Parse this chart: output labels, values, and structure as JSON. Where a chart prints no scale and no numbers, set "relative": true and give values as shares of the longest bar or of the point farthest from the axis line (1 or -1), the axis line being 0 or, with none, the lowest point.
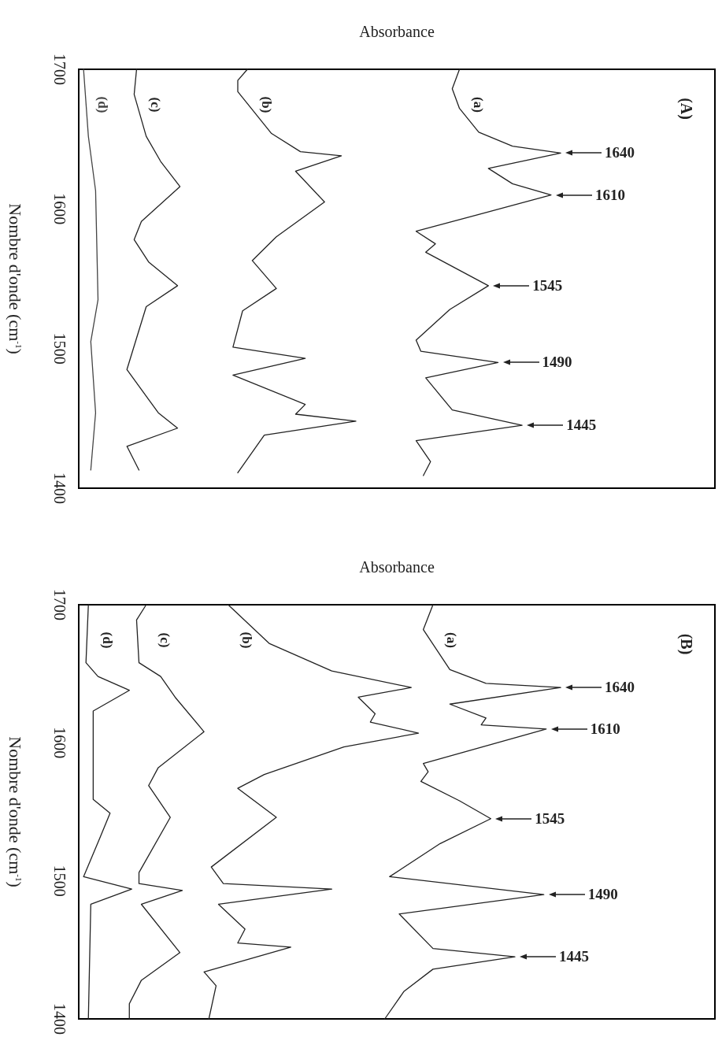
{
  "chart_data": [
    {
      "type": "line",
      "relative": true,
      "orientation": "horizontal",
      "xlabel": "Absorbance",
      "ylabel": "Nombre d'onde (cm$^{-1}$)",
      "ylim": [
        1400,
        1700
      ],
      "yticks": [
        1400,
        1500,
        1600,
        1700
      ],
      "legend": false,
      "grid": false,
      "line_style": "solid",
      "annotations": [
        "(A)",
        {
          "text": "1640",
          "x": 1.0,
          "y": 1640
        },
        {
          "text": "1610",
          "x": 0.98,
          "y": 1610
        },
        {
          "text": "1545",
          "x": 0.85,
          "y": 1545
        },
        {
          "text": "1490",
          "x": 0.87,
          "y": 1490
        },
        {
          "text": "1445",
          "x": 0.92,
          "y": 1445
        }
      ],
      "series": [
        {
          "name": "(a)",
          "color": "#222222",
          "x": [
            1700,
            1686,
            1672,
            1655,
            1645,
            1640,
            1629,
            1618,
            1610,
            1596,
            1584,
            1575,
            1569,
            1545,
            1528,
            1506,
            1498,
            1490,
            1479,
            1456,
            1445,
            1434,
            1419,
            1409
          ],
          "values": [
            0.79,
            0.775,
            0.79,
            0.83,
            0.9,
            1.0,
            0.85,
            0.9,
            0.98,
            0.83,
            0.7,
            0.74,
            0.72,
            0.85,
            0.77,
            0.7,
            0.71,
            0.87,
            0.72,
            0.775,
            0.92,
            0.7,
            0.73,
            0.715
          ]
        },
        {
          "name": "(b)",
          "color": "#222222",
          "x": [
            1700,
            1692,
            1684,
            1654,
            1641,
            1638,
            1627,
            1605,
            1580,
            1563,
            1543,
            1527,
            1501,
            1493,
            1481,
            1460,
            1453,
            1448,
            1438,
            1411
          ],
          "values": [
            0.35,
            0.33,
            0.33,
            0.4,
            0.46,
            0.545,
            0.45,
            0.51,
            0.41,
            0.36,
            0.41,
            0.34,
            0.32,
            0.47,
            0.32,
            0.47,
            0.45,
            0.575,
            0.385,
            0.33
          ]
        },
        {
          "name": "(c)",
          "color": "#222222",
          "x": [
            1700,
            1682,
            1652,
            1634,
            1616,
            1591,
            1578,
            1562,
            1545,
            1530,
            1485,
            1454,
            1443,
            1430,
            1413
          ],
          "values": [
            0.12,
            0.115,
            0.14,
            0.17,
            0.21,
            0.13,
            0.115,
            0.145,
            0.205,
            0.14,
            0.1,
            0.165,
            0.205,
            0.1,
            0.125
          ]
        },
        {
          "name": "(d)",
          "color": "#444444",
          "x": [
            1700,
            1652,
            1613,
            1535,
            1505,
            1454,
            1413
          ],
          "values": [
            0.01,
            0.02,
            0.035,
            0.04,
            0.025,
            0.035,
            0.025
          ]
        }
      ]
    },
    {
      "type": "line",
      "relative": true,
      "orientation": "horizontal",
      "xlabel": "Absorbance",
      "ylabel": "Nombre d'onde (cm$^{-1}$)",
      "ylim": [
        1400,
        1700
      ],
      "yticks": [
        1400,
        1500,
        1600,
        1700
      ],
      "legend": false,
      "grid": false,
      "line_style": "solid",
      "annotations": [
        "(B)",
        {
          "text": "1640",
          "x": 1.0,
          "y": 1640
        },
        {
          "text": "1610",
          "x": 0.97,
          "y": 1610
        },
        {
          "text": "1545",
          "x": 0.855,
          "y": 1545
        },
        {
          "text": "1490",
          "x": 0.965,
          "y": 1490
        },
        {
          "text": "1445",
          "x": 0.905,
          "y": 1445
        }
      ],
      "series": [
        {
          "name": "(a)",
          "color": "#222222",
          "x": [
            1700,
            1682,
            1653,
            1643,
            1640,
            1628,
            1618,
            1613,
            1610,
            1585,
            1579,
            1572,
            1558,
            1545,
            1527,
            1503,
            1490,
            1476,
            1451,
            1445,
            1436,
            1420,
            1400
          ],
          "values": [
            0.735,
            0.715,
            0.77,
            0.845,
            1.0,
            0.77,
            0.845,
            0.835,
            0.97,
            0.715,
            0.725,
            0.71,
            0.79,
            0.855,
            0.75,
            0.645,
            0.965,
            0.665,
            0.735,
            0.905,
            0.735,
            0.675,
            0.635
          ]
        },
        {
          "name": "(b)",
          "color": "#222222",
          "x": [
            1700,
            1672,
            1652,
            1640,
            1633,
            1621,
            1615,
            1607,
            1597,
            1577,
            1567,
            1546,
            1510,
            1498,
            1494,
            1483,
            1465,
            1455,
            1452,
            1434,
            1424,
            1400
          ],
          "values": [
            0.31,
            0.395,
            0.525,
            0.69,
            0.58,
            0.615,
            0.605,
            0.705,
            0.55,
            0.385,
            0.33,
            0.41,
            0.275,
            0.3,
            0.525,
            0.29,
            0.345,
            0.33,
            0.44,
            0.26,
            0.285,
            0.27
          ]
        },
        {
          "name": "(c)",
          "color": "#222222",
          "x": [
            1700,
            1689,
            1658,
            1648,
            1633,
            1608,
            1582,
            1569,
            1546,
            1506,
            1498,
            1493,
            1483,
            1448,
            1428,
            1411,
            1400
          ],
          "values": [
            0.14,
            0.12,
            0.125,
            0.17,
            0.2,
            0.26,
            0.165,
            0.145,
            0.19,
            0.125,
            0.125,
            0.215,
            0.13,
            0.21,
            0.13,
            0.105,
            0.105
          ]
        },
        {
          "name": "(d)",
          "color": "#222222",
          "x": [
            1700,
            1658,
            1648,
            1638,
            1623,
            1559,
            1549,
            1532,
            1503,
            1494,
            1483,
            1400
          ],
          "values": [
            0.02,
            0.015,
            0.04,
            0.105,
            0.03,
            0.03,
            0.065,
            0.045,
            0.01,
            0.11,
            0.025,
            0.02
          ]
        }
      ]
    }
  ]
}
